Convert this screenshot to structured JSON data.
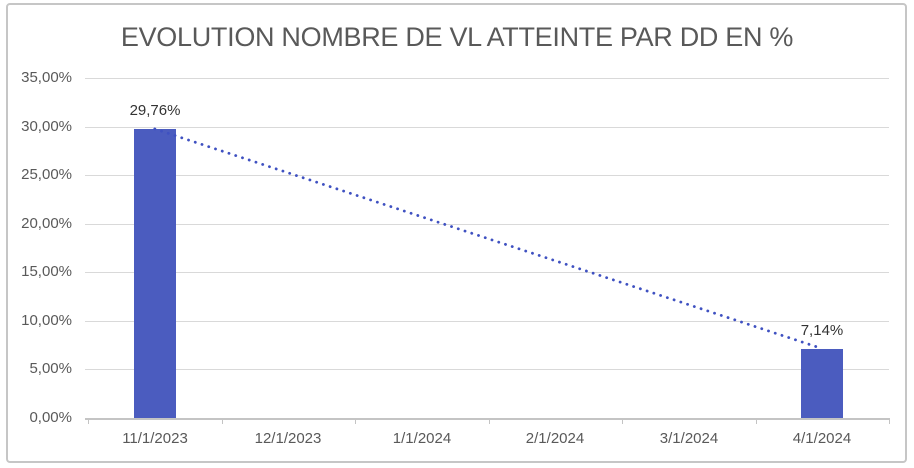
{
  "chart_data": {
    "type": "bar",
    "title": "EVOLUTION NOMBRE DE VL ATTEINTE PAR DD EN %",
    "categories": [
      "11/1/2023",
      "12/1/2023",
      "1/1/2024",
      "2/1/2024",
      "3/1/2024",
      "4/1/2024"
    ],
    "series": [
      {
        "values": [
          29.76,
          null,
          null,
          null,
          null,
          7.14
        ],
        "data_labels": [
          "29,76%",
          null,
          null,
          null,
          null,
          "7,14%"
        ]
      }
    ],
    "trendline": {
      "style": "dotted",
      "from": {
        "category": "11/1/2023",
        "value": 29.76
      },
      "to": {
        "category": "4/1/2024",
        "value": 7.14
      }
    },
    "xlabel": "",
    "ylabel": "",
    "ylim": [
      0,
      35
    ],
    "ytick_values": [
      0,
      5,
      10,
      15,
      20,
      25,
      30,
      35
    ],
    "ytick_labels": [
      "0,00%",
      "5,00%",
      "10,00%",
      "15,00%",
      "20,00%",
      "25,00%",
      "30,00%",
      "35,00%"
    ],
    "grid": true,
    "legend": false,
    "colors": {
      "bar": "#4B5CBF",
      "trendline": "#3F51C1",
      "gridline": "#D9D9D9",
      "axis_line": "#C4C4C4",
      "axis_text": "#595959",
      "title_text": "#595959",
      "data_label_text": "#333333",
      "chart_border": "#C6C6C6",
      "background": "#FFFFFF"
    }
  }
}
